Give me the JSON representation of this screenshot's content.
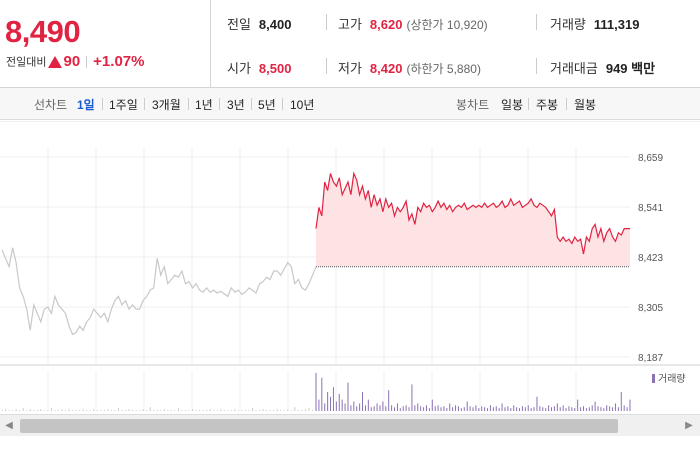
{
  "quote": {
    "price": "8,490",
    "change_label": "전일대비",
    "change_icon": "triangle-up-icon",
    "change_amount": "90",
    "change_percent": "+1.07%",
    "up_color": "#e12343"
  },
  "info": {
    "prev_close_label": "전일",
    "prev_close": "8,400",
    "high_label": "고가",
    "high": "8,620",
    "upper_limit": "(상한가 10,920)",
    "volume_label": "거래량",
    "volume": "111,319",
    "open_label": "시가",
    "open": "8,500",
    "low_label": "저가",
    "low": "8,420",
    "lower_limit": "(하한가 5,880)",
    "amount_label": "거래대금",
    "amount": "949 백만"
  },
  "periods": {
    "title": "선차트",
    "items": [
      "1일",
      "1주일",
      "3개월",
      "1년",
      "3년",
      "5년",
      "10년"
    ],
    "active": "1일"
  },
  "candles": {
    "title": "봉차트",
    "items": [
      "일봉",
      "주봉",
      "월봉"
    ]
  },
  "chart_data": {
    "type": "line",
    "y_ticks": [
      "8,659",
      "8,541",
      "8,423",
      "8,305",
      "8,187"
    ],
    "ylim": [
      8187,
      8659
    ],
    "previous_close": 8400,
    "previous_day_color": "#c8c8c8",
    "today_color": "#e12343",
    "fill_color": "#fde3e3",
    "volume_legend": "거래량",
    "volume_color": "#8a72b4",
    "previous_day": [
      8440,
      8420,
      8400,
      8445,
      8410,
      8350,
      8330,
      8300,
      8250,
      8310,
      8290,
      8270,
      8300,
      8305,
      8290,
      8330,
      8310,
      8300,
      8290,
      8260,
      8240,
      8245,
      8260,
      8250,
      8270,
      8280,
      8300,
      8290,
      8280,
      8290,
      8270,
      8300,
      8320,
      8330,
      8310,
      8320,
      8300,
      8310,
      8300,
      8300,
      8320,
      8330,
      8345,
      8350,
      8420,
      8380,
      8400,
      8360,
      8370,
      8380,
      8375,
      8390,
      8360,
      8365,
      8350,
      8360,
      8345,
      8340,
      8350,
      8340,
      8345,
      8338,
      8342,
      8336,
      8330,
      8350,
      8340,
      8345,
      8335,
      8340,
      8350,
      8345,
      8338,
      8360,
      8365,
      8375,
      8370,
      8390,
      8390,
      8380,
      8395,
      8410,
      8400,
      8360,
      8370,
      8350,
      8345,
      8360,
      8380,
      8400
    ],
    "today": [
      8490,
      8540,
      8520,
      8600,
      8580,
      8620,
      8600,
      8590,
      8610,
      8570,
      8585,
      8600,
      8570,
      8620,
      8605,
      8570,
      8590,
      8560,
      8580,
      8540,
      8570,
      8545,
      8560,
      8530,
      8560,
      8540,
      8550,
      8520,
      8540,
      8530,
      8540,
      8555,
      8510,
      8525,
      8500,
      8540,
      8530,
      8550,
      8540,
      8545,
      8530,
      8540,
      8555,
      8540,
      8550,
      8535,
      8545,
      8530,
      8540,
      8545,
      8540,
      8550,
      8535,
      8540,
      8545,
      8540,
      8545,
      8540,
      8550,
      8540,
      8545,
      8550,
      8540,
      8545,
      8555,
      8540,
      8545,
      8560,
      8545,
      8550,
      8555,
      8540,
      8545,
      8550,
      8560,
      8545,
      8540,
      8550,
      8545,
      8540,
      8530,
      8520,
      8535,
      8470,
      8460,
      8470,
      8460,
      8465,
      8455,
      8470,
      8460,
      8465,
      8430,
      8470,
      8460,
      8490,
      8500,
      8470,
      8490,
      8460,
      8480,
      8490,
      8470,
      8460,
      8480,
      8475,
      8490,
      8490,
      8490
    ],
    "volume_prev": [
      1,
      2,
      1,
      1,
      2,
      1,
      3,
      1,
      2,
      1,
      1,
      2,
      1,
      1,
      3,
      1,
      1,
      2,
      1,
      2,
      1,
      1,
      1,
      2,
      1,
      1,
      2,
      1,
      1,
      1,
      2,
      1,
      1,
      3,
      1,
      1,
      2,
      1,
      1,
      1,
      2,
      1,
      4,
      1,
      1,
      1,
      2,
      1,
      1,
      1,
      3,
      1,
      1,
      1,
      2,
      1,
      1,
      1,
      1,
      2,
      1,
      1,
      2,
      1,
      1,
      1,
      2,
      1,
      1,
      1,
      1,
      3,
      1,
      1,
      2,
      1,
      1,
      1,
      2,
      1,
      1,
      2,
      1,
      4,
      1,
      1,
      2,
      3,
      1,
      1
    ],
    "volume_today": [
      40,
      12,
      35,
      8,
      20,
      15,
      25,
      10,
      18,
      12,
      8,
      30,
      6,
      10,
      5,
      8,
      20,
      6,
      12,
      4,
      5,
      8,
      6,
      10,
      5,
      22,
      6,
      4,
      8,
      3,
      5,
      6,
      4,
      28,
      6,
      8,
      5,
      4,
      6,
      3,
      12,
      5,
      6,
      4,
      5,
      3,
      8,
      4,
      6,
      5,
      3,
      4,
      10,
      5,
      4,
      6,
      3,
      5,
      4,
      3,
      6,
      4,
      5,
      3,
      8,
      4,
      5,
      3,
      6,
      4,
      3,
      5,
      4,
      6,
      3,
      4,
      15,
      5,
      4,
      3,
      6,
      4,
      5,
      8,
      4,
      6,
      3,
      5,
      4,
      3,
      12,
      4,
      5,
      3,
      4,
      6,
      10,
      5,
      4,
      3,
      6,
      5,
      4,
      8,
      4,
      20,
      6,
      4,
      12
    ]
  }
}
